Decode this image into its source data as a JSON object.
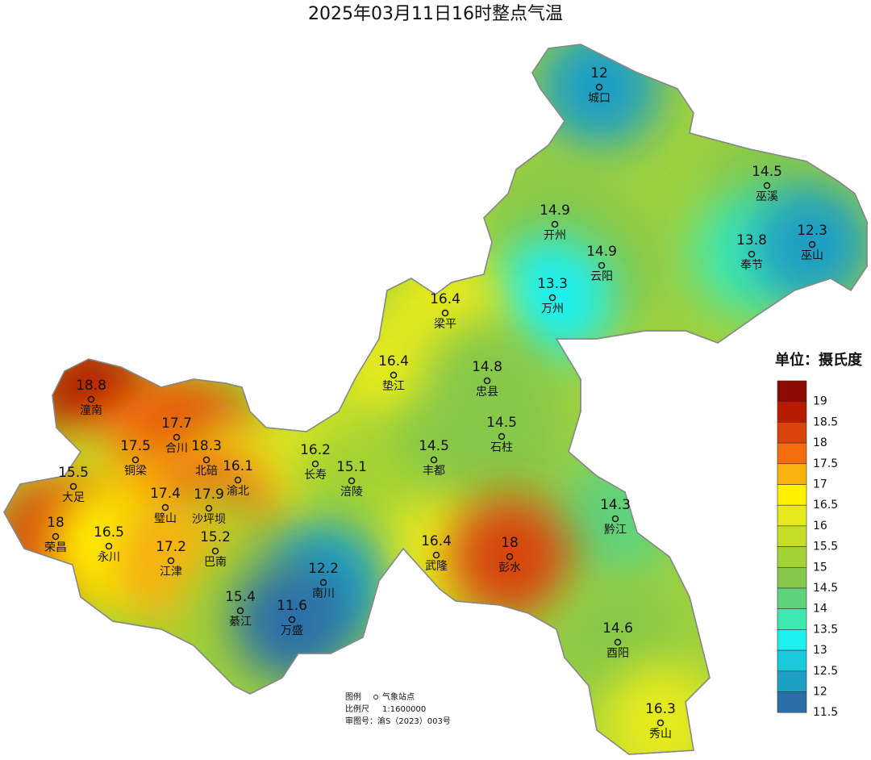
{
  "title": "2025年03月11日16时整点气温",
  "stations": [
    {
      "name": "城口",
      "value": 12
    },
    {
      "name": "巫溪",
      "value": 14.5
    },
    {
      "name": "开州",
      "value": 14.9
    },
    {
      "name": "云阳",
      "value": 14.9
    },
    {
      "name": "奉节",
      "value": 13.8
    },
    {
      "name": "巫山",
      "value": 12.3
    },
    {
      "name": "万州",
      "value": 13.3
    },
    {
      "name": "梁平",
      "value": 16.4
    },
    {
      "name": "垫江",
      "value": 16.4
    },
    {
      "name": "忠县",
      "value": 14.8
    },
    {
      "name": "石柱",
      "value": 14.5
    },
    {
      "name": "潼南",
      "value": 18.8
    },
    {
      "name": "合川",
      "value": 17.7
    },
    {
      "name": "铜梁",
      "value": 17.5
    },
    {
      "name": "北碚",
      "value": 18.3
    },
    {
      "name": "长寿",
      "value": 16.2
    },
    {
      "name": "渝北",
      "value": 16.1
    },
    {
      "name": "丰都",
      "value": 14.5
    },
    {
      "name": "涪陵",
      "value": 15.1
    },
    {
      "name": "大足",
      "value": 15.5
    },
    {
      "name": "璧山",
      "value": 17.4
    },
    {
      "name": "沙坪坝",
      "value": 17.9
    },
    {
      "name": "黔江",
      "value": 14.3
    },
    {
      "name": "荣昌",
      "value": 18
    },
    {
      "name": "永川",
      "value": 16.5
    },
    {
      "name": "巴南",
      "value": 15.2
    },
    {
      "name": "武隆",
      "value": 16.4
    },
    {
      "name": "彭水",
      "value": 18
    },
    {
      "name": "江津",
      "value": 17.2
    },
    {
      "name": "南川",
      "value": 12.2
    },
    {
      "name": "綦江",
      "value": 15.4
    },
    {
      "name": "万盛",
      "value": 11.6
    },
    {
      "name": "酉阳",
      "value": 14.6
    },
    {
      "name": "秀山",
      "value": 16.3
    }
  ],
  "legend": {
    "title": "单位：摄氏度",
    "items": [
      {
        "value": 19,
        "color": "#8b0a02"
      },
      {
        "value": 18.5,
        "color": "#b51c02"
      },
      {
        "value": 18,
        "color": "#d84409"
      },
      {
        "value": 17.5,
        "color": "#f46c0d"
      },
      {
        "value": 17,
        "color": "#f8b20c"
      },
      {
        "value": 16.5,
        "color": "#fff100"
      },
      {
        "value": 16,
        "color": "#e6ea1a"
      },
      {
        "value": 15.5,
        "color": "#c6df26"
      },
      {
        "value": 15,
        "color": "#a3d232"
      },
      {
        "value": 14.5,
        "color": "#86c84a"
      },
      {
        "value": 14,
        "color": "#5fd27c"
      },
      {
        "value": 13.5,
        "color": "#3ce8b0"
      },
      {
        "value": 13,
        "color": "#1ef0f0"
      },
      {
        "value": 12.5,
        "color": "#19c9dc"
      },
      {
        "value": 12,
        "color": "#1e9fc4"
      },
      {
        "value": 11.5,
        "color": "#2a6fa8"
      }
    ]
  },
  "notes": [
    "图例",
    "气象站点",
    "比例尺",
    "1:1600000",
    "审图号：渝S（2023）003号"
  ]
}
